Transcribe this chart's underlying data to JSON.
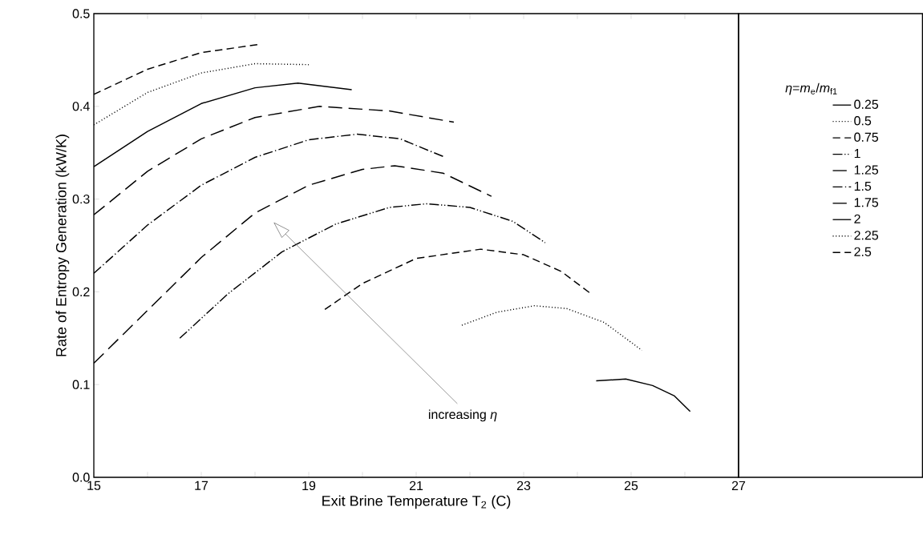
{
  "chart_data": {
    "type": "line",
    "xlabel": "Exit Brine Temperature T$_{2}$ (C)",
    "ylabel": "Rate of Entropy Generation (kW/K)",
    "legend_title": "*η*=*m*$_{e}$/*m*$_{f1}$",
    "legend": "right",
    "grid": false,
    "marker": "none",
    "xlim": [
      15,
      27
    ],
    "ylim": [
      0,
      0.5
    ],
    "xticks": [
      15,
      {
        "value": 16,
        "label": null
      },
      17,
      {
        "value": 18,
        "label": null
      },
      19,
      {
        "value": 20,
        "label": null
      },
      21,
      {
        "value": 22,
        "label": null
      },
      23,
      {
        "value": 24,
        "label": null
      },
      25,
      {
        "value": 26,
        "label": null
      },
      27
    ],
    "yticks": [
      {
        "value": 0,
        "label": "0.0"
      },
      0.1,
      0.2,
      0.3,
      0.4,
      0.5
    ],
    "annotations": [
      "increasing *η*"
    ],
    "series": [
      {
        "name": "0.25",
        "color": "#000000",
        "line_style": "solid",
        "x": [
          24.35,
          24.9,
          25.4,
          25.8,
          26.1
        ],
        "values": [
          0.104,
          0.106,
          0.099,
          0.088,
          0.071
        ]
      },
      {
        "name": "0.5",
        "color": "#000000",
        "line_style": "dotted",
        "x": [
          21.85,
          22.5,
          23.2,
          23.8,
          24.5,
          25.2
        ],
        "values": [
          0.164,
          0.178,
          0.185,
          0.182,
          0.167,
          0.137
        ]
      },
      {
        "name": "0.75",
        "color": "#000000",
        "line_style": "dashed",
        "x": [
          19.3,
          20,
          21,
          22.2,
          23,
          23.7,
          24.25
        ],
        "values": [
          0.181,
          0.209,
          0.236,
          0.246,
          0.24,
          0.222,
          0.198
        ]
      },
      {
        "name": "1",
        "color": "#000000",
        "line_style": "dashdotdot",
        "x": [
          16.6,
          17.5,
          18.5,
          19.5,
          20.5,
          21.2,
          22,
          22.8,
          23.4
        ],
        "values": [
          0.15,
          0.198,
          0.243,
          0.273,
          0.291,
          0.295,
          0.291,
          0.276,
          0.253
        ]
      },
      {
        "name": "1.25",
        "color": "#000000",
        "line_style": "longdashed",
        "x": [
          15,
          16,
          17,
          18,
          19,
          20,
          20.6,
          21.5,
          22.4
        ],
        "values": [
          0.123,
          0.18,
          0.237,
          0.285,
          0.315,
          0.332,
          0.336,
          0.328,
          0.303
        ]
      },
      {
        "name": "1.5",
        "color": "#000000",
        "line_style": "dashdot",
        "x": [
          15,
          16,
          17,
          18,
          19,
          19.9,
          20.7,
          21.5
        ],
        "values": [
          0.22,
          0.272,
          0.315,
          0.345,
          0.364,
          0.37,
          0.365,
          0.346
        ]
      },
      {
        "name": "1.75",
        "color": "#000000",
        "line_style": "longdashed",
        "x": [
          15,
          16,
          17,
          18,
          19.2,
          20.5,
          21.7
        ],
        "values": [
          0.283,
          0.33,
          0.365,
          0.388,
          0.4,
          0.395,
          0.383
        ]
      },
      {
        "name": "2",
        "color": "#000000",
        "line_style": "solid",
        "x": [
          15,
          16,
          17,
          18,
          18.8,
          19.8
        ],
        "values": [
          0.335,
          0.373,
          0.403,
          0.42,
          0.425,
          0.418
        ]
      },
      {
        "name": "2.25",
        "color": "#000000",
        "line_style": "dotted",
        "x": [
          15,
          16,
          17,
          18,
          19
        ],
        "values": [
          0.38,
          0.415,
          0.436,
          0.446,
          0.445
        ]
      },
      {
        "name": "2.5",
        "color": "#000000",
        "line_style": "dashed",
        "x": [
          15,
          16,
          17,
          18.1
        ],
        "values": [
          0.413,
          0.44,
          0.458,
          0.467
        ]
      }
    ]
  }
}
